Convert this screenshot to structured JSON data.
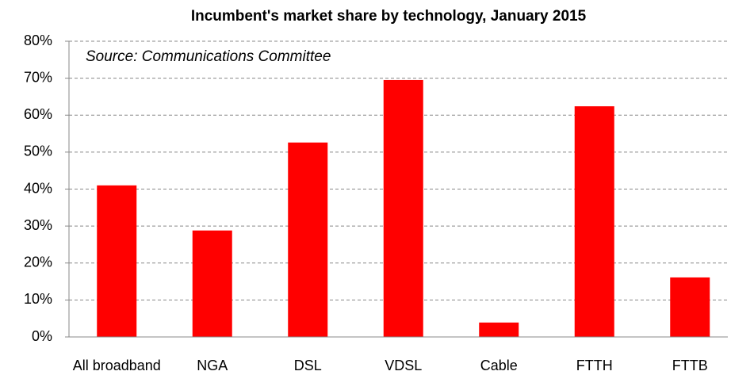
{
  "chart_data": {
    "type": "bar",
    "title": "Incumbent's market share by technology, January 2015",
    "annotation": "Source: Communications Committee",
    "categories": [
      "All broadband",
      "NGA",
      "DSL",
      "VDSL",
      "Cable",
      "FTTH",
      "FTTB"
    ],
    "values": [
      41,
      28.8,
      52.6,
      69.5,
      3.9,
      62.4,
      16.1
    ],
    "color": "#ff0000",
    "ylim": [
      0,
      80
    ],
    "yticks": [
      {
        "value": 0,
        "label": "0%"
      },
      {
        "value": 10,
        "label": "10%"
      },
      {
        "value": 20,
        "label": "20%"
      },
      {
        "value": 30,
        "label": "30%"
      },
      {
        "value": 40,
        "label": "40%"
      },
      {
        "value": 50,
        "label": "50%"
      },
      {
        "value": 60,
        "label": "60%"
      },
      {
        "value": 70,
        "label": "70%"
      },
      {
        "value": 80,
        "label": "80%"
      }
    ],
    "grid": true
  }
}
